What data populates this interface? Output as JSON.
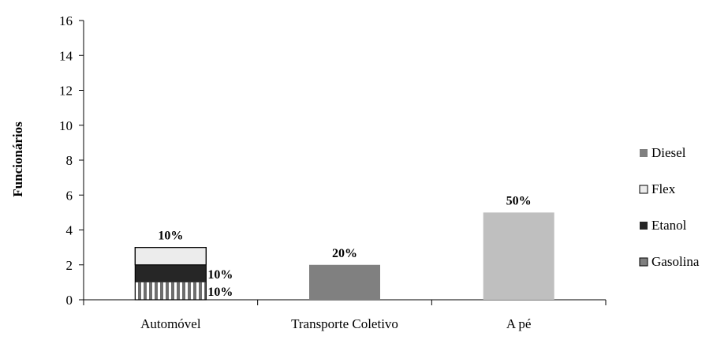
{
  "chart_data": {
    "type": "bar",
    "stacked": true,
    "ylabel": "Funcionários",
    "ylim": [
      0,
      16
    ],
    "yticks": [
      0,
      2,
      4,
      6,
      8,
      10,
      12,
      14,
      16
    ],
    "categories": [
      "Automóvel",
      "Transporte Coletivo",
      "A pé"
    ],
    "grid": false,
    "legend_position": "right",
    "series": [
      {
        "name": "Gasolina",
        "color": "#7f7f7f",
        "pattern": "vertical-stripes",
        "values": [
          1,
          0,
          0
        ]
      },
      {
        "name": "Etanol",
        "color": "#262626",
        "pattern": "solid",
        "values": [
          1,
          0,
          0
        ]
      },
      {
        "name": "Flex",
        "color": "#ececec",
        "pattern": "solid",
        "values": [
          1,
          0,
          0
        ]
      },
      {
        "name": "Diesel",
        "color": "#808080",
        "pattern": "solid",
        "values": [
          0,
          2,
          0
        ]
      }
    ],
    "extra_bars": [
      {
        "category": "A pé",
        "value": 5,
        "color": "#bfbfbf"
      }
    ],
    "data_labels": [
      {
        "category": "Automóvel",
        "text": "10%",
        "anchor": "top",
        "level": 3
      },
      {
        "category": "Automóvel",
        "text": "10%",
        "anchor": "right",
        "level": 1.5
      },
      {
        "category": "Automóvel",
        "text": "10%",
        "anchor": "right",
        "level": 0.5
      },
      {
        "category": "Transporte Coletivo",
        "text": "20%",
        "anchor": "top",
        "level": 2
      },
      {
        "category": "A pé",
        "text": "50%",
        "anchor": "top",
        "level": 5
      }
    ],
    "legend_order": [
      "Diesel",
      "Flex",
      "Etanol",
      "Gasolina"
    ]
  }
}
